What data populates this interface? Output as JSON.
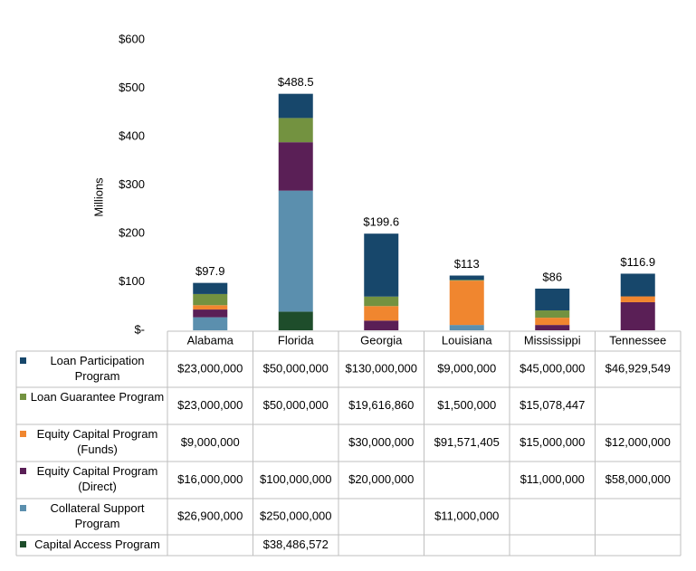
{
  "chart_data": {
    "type": "stacked-bar",
    "y_axis_label": "Millions",
    "categories": [
      "Alabama",
      "Florida",
      "Georgia",
      "Louisiana",
      "Mississippi",
      "Tennessee"
    ],
    "ylim": [
      0,
      600
    ],
    "yticks": [
      {
        "value": 0,
        "label": "$-"
      },
      {
        "value": 100,
        "label": "$100"
      },
      {
        "value": 200,
        "label": "$200"
      },
      {
        "value": 300,
        "label": "$300"
      },
      {
        "value": 400,
        "label": "$400"
      },
      {
        "value": 500,
        "label": "$500"
      },
      {
        "value": 600,
        "label": "$600"
      }
    ],
    "series": [
      {
        "name": "Loan Participation Program",
        "color": "#17476b",
        "values": [
          23,
          50,
          130,
          9,
          45,
          46.929549
        ],
        "value_labels": [
          "$23,000,000",
          "$50,000,000",
          "$130,000,000",
          "$9,000,000",
          "$45,000,000",
          "$46,929,549"
        ]
      },
      {
        "name": "Loan Guarantee Program",
        "color": "#739240",
        "values": [
          23,
          50,
          19.61686,
          1.5,
          15.078447,
          null
        ],
        "value_labels": [
          "$23,000,000",
          "$50,000,000",
          "$19,616,860",
          "$1,500,000",
          "$15,078,447",
          null
        ]
      },
      {
        "name": "Equity Capital Program (Funds)",
        "color": "#f0862f",
        "values": [
          9,
          null,
          30,
          91.571405,
          15,
          12
        ],
        "value_labels": [
          "$9,000,000",
          null,
          "$30,000,000",
          "$91,571,405",
          "$15,000,000",
          "$12,000,000"
        ]
      },
      {
        "name": "Equity Capital Program (Direct)",
        "color": "#5a1f56",
        "values": [
          16,
          100,
          20,
          null,
          11,
          58
        ],
        "value_labels": [
          "$16,000,000",
          "$100,000,000",
          "$20,000,000",
          null,
          "$11,000,000",
          "$58,000,000"
        ]
      },
      {
        "name": "Collateral Support Program",
        "color": "#5b8fae",
        "values": [
          26.9,
          250,
          null,
          11,
          null,
          null
        ],
        "value_labels": [
          "$26,900,000",
          "$250,000,000",
          null,
          "$11,000,000",
          null,
          null
        ]
      },
      {
        "name": "Capital Access Program",
        "color": "#1e4d2b",
        "values": [
          null,
          38.486572,
          null,
          null,
          null,
          null
        ],
        "value_labels": [
          null,
          "$38,486,572",
          null,
          null,
          null,
          null
        ]
      }
    ],
    "totals": {
      "values": [
        97.9,
        488.5,
        199.6,
        113,
        86,
        116.9
      ],
      "value_labels": [
        "$97.9",
        "$488.5",
        "$199.6",
        "$113",
        "$86",
        "$116.9"
      ]
    }
  }
}
